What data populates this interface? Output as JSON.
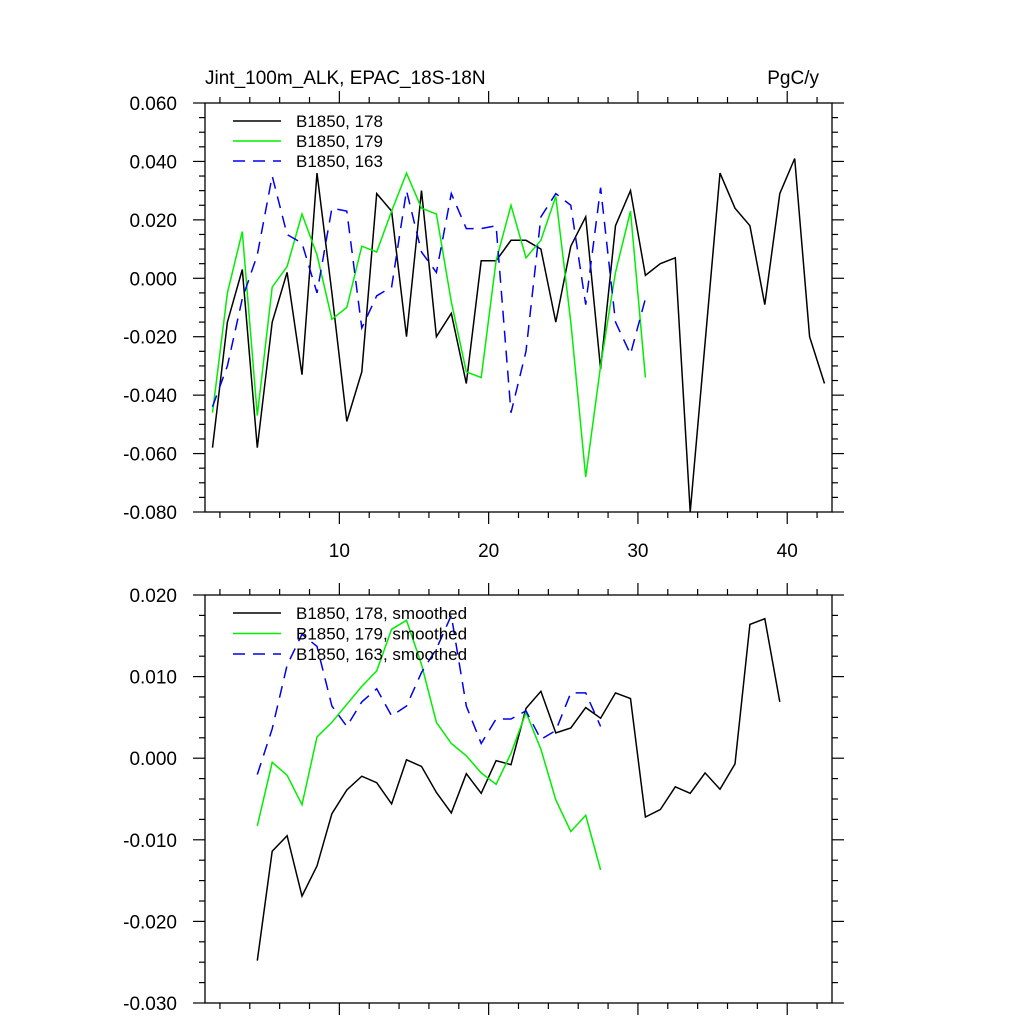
{
  "chart_data": [
    {
      "type": "line",
      "title_left": "Jint_100m_ALK, EPAC_18S-18N",
      "title_right": "PgC/y",
      "xlim": [
        1,
        43
      ],
      "ylim": [
        -0.08,
        0.06
      ],
      "xticks": [
        10,
        20,
        30,
        40
      ],
      "xtick_labels": [
        "10",
        "20",
        "30",
        "40"
      ],
      "yticks": [
        -0.08,
        -0.06,
        -0.04,
        -0.02,
        0.0,
        0.02,
        0.04,
        0.06
      ],
      "ytick_labels": [
        "-0.080",
        "-0.060",
        "-0.040",
        "-0.020",
        "0.000",
        "0.020",
        "0.040",
        "0.060"
      ],
      "series": [
        {
          "name": "B1850, 178",
          "color": "#000000",
          "dash": "",
          "x": [
            1.5,
            2.5,
            3.5,
            4.5,
            5.5,
            6.5,
            7.5,
            8.5,
            9.5,
            10.5,
            11.5,
            12.5,
            13.5,
            14.5,
            15.5,
            16.5,
            17.5,
            18.5,
            19.5,
            20.5,
            21.5,
            22.5,
            23.5,
            24.5,
            25.5,
            26.5,
            27.5,
            28.5,
            29.5,
            30.5,
            31.5,
            32.5,
            33.5,
            34.5,
            35.5,
            36.5,
            37.5,
            38.5,
            39.5,
            40.5,
            41.5,
            42.5
          ],
          "values": [
            -0.058,
            -0.015,
            0.003,
            -0.058,
            -0.015,
            0.002,
            -0.033,
            0.036,
            -0.005,
            -0.049,
            -0.032,
            0.029,
            0.023,
            -0.02,
            0.03,
            -0.02,
            -0.012,
            -0.036,
            0.006,
            0.006,
            0.013,
            0.013,
            0.01,
            -0.015,
            0.011,
            0.021,
            -0.031,
            0.018,
            0.03,
            0.001,
            0.005,
            0.007,
            -0.08,
            -0.022,
            0.036,
            0.024,
            0.018,
            -0.009,
            0.029,
            0.041,
            -0.02,
            -0.036
          ]
        },
        {
          "name": "B1850, 179",
          "color": "#00ee00",
          "dash": "",
          "x": [
            1.5,
            2.5,
            3.5,
            4.5,
            5.5,
            6.5,
            7.5,
            8.5,
            9.5,
            10.5,
            11.5,
            12.5,
            13.5,
            14.5,
            15.5,
            16.5,
            17.5,
            18.5,
            19.5,
            20.5,
            21.5,
            22.5,
            23.5,
            24.5,
            25.5,
            26.5,
            27.5,
            28.5,
            29.5,
            30.5
          ],
          "values": [
            -0.046,
            -0.005,
            0.016,
            -0.047,
            -0.003,
            0.004,
            0.022,
            0.008,
            -0.014,
            -0.01,
            0.011,
            0.009,
            0.023,
            0.036,
            0.024,
            0.022,
            -0.008,
            -0.032,
            -0.034,
            0.006,
            0.025,
            0.007,
            0.013,
            0.028,
            -0.015,
            -0.068,
            -0.03,
            0.002,
            0.023,
            -0.034
          ]
        },
        {
          "name": "B1850, 163",
          "color": "#0000ee",
          "dash": "12,8",
          "x": [
            1.5,
            2.5,
            3.5,
            4.5,
            5.5,
            6.5,
            7.5,
            8.5,
            9.5,
            10.5,
            11.5,
            12.5,
            13.5,
            14.5,
            15.5,
            16.5,
            17.5,
            18.5,
            19.5,
            20.5,
            21.5,
            22.5,
            23.5,
            24.5,
            25.5,
            26.5,
            27.5,
            28.5,
            29.5,
            30.5
          ],
          "values": [
            -0.044,
            -0.03,
            -0.007,
            0.008,
            0.035,
            0.015,
            0.012,
            -0.005,
            0.024,
            0.023,
            -0.017,
            -0.006,
            -0.003,
            0.03,
            0.009,
            0.002,
            0.029,
            0.017,
            0.017,
            0.018,
            -0.046,
            -0.025,
            0.021,
            0.029,
            0.025,
            -0.009,
            0.031,
            -0.015,
            -0.026,
            -0.007
          ]
        }
      ]
    },
    {
      "type": "line",
      "xlim": [
        1,
        43
      ],
      "ylim": [
        -0.03,
        0.02
      ],
      "xticks": [
        10,
        20,
        30,
        40
      ],
      "yticks": [
        -0.03,
        -0.02,
        -0.01,
        0.0,
        0.01,
        0.02
      ],
      "ytick_labels": [
        "-0.030",
        "-0.020",
        "-0.010",
        "0.000",
        "0.010",
        "0.020"
      ],
      "series": [
        {
          "name": "B1850, 178, smoothed",
          "color": "#000000",
          "dash": "",
          "x": [
            4.5,
            5.5,
            6.5,
            7.5,
            8.5,
            9.5,
            10.5,
            11.5,
            12.5,
            13.5,
            14.5,
            15.5,
            16.5,
            17.5,
            18.5,
            19.5,
            20.5,
            21.5,
            22.5,
            23.5,
            24.5,
            25.5,
            26.5,
            27.5,
            28.5,
            29.5,
            30.5,
            31.5,
            32.5,
            33.5,
            34.5,
            35.5,
            36.5,
            37.5,
            38.5,
            39.5
          ],
          "values": [
            -0.0248,
            -0.0114,
            -0.0095,
            -0.0169,
            -0.0132,
            -0.0068,
            -0.0039,
            -0.0022,
            -0.003,
            -0.0056,
            -0.0002,
            -0.001,
            -0.0042,
            -0.0067,
            -0.0019,
            -0.0043,
            -0.0003,
            -0.0008,
            0.0061,
            0.0082,
            0.0031,
            0.0037,
            0.0062,
            0.0049,
            0.008,
            0.0073,
            -0.0072,
            -0.0063,
            -0.0035,
            -0.0043,
            -0.0018,
            -0.0038,
            -0.0007,
            0.0164,
            0.0171,
            0.0069
          ]
        },
        {
          "name": "B1850, 179, smoothed",
          "color": "#00ee00",
          "dash": "",
          "x": [
            4.5,
            5.5,
            6.5,
            7.5,
            8.5,
            9.5,
            10.5,
            11.5,
            12.5,
            13.5,
            14.5,
            15.5,
            16.5,
            17.5,
            18.5,
            19.5,
            20.5,
            21.5,
            22.5,
            23.5,
            24.5,
            25.5,
            26.5,
            27.5
          ],
          "values": [
            -0.0083,
            -0.0005,
            -0.0021,
            -0.0057,
            0.0026,
            0.0044,
            0.0066,
            0.0088,
            0.0107,
            0.0158,
            0.0169,
            0.0115,
            0.0044,
            0.0018,
            0.0003,
            -0.0018,
            -0.0032,
            0.0006,
            0.0056,
            0.0011,
            -0.0051,
            -0.009,
            -0.007,
            -0.0137
          ]
        },
        {
          "name": "B1850, 163, smoothed",
          "color": "#0000ee",
          "dash": "12,8",
          "x": [
            4.5,
            5.5,
            6.5,
            7.5,
            8.5,
            9.5,
            10.5,
            11.5,
            12.5,
            13.5,
            14.5,
            15.5,
            16.5,
            17.5,
            18.5,
            19.5,
            20.5,
            21.5,
            22.5,
            23.5,
            24.5,
            25.5,
            26.5,
            27.5
          ],
          "values": [
            -0.002,
            0.0036,
            0.0114,
            0.0152,
            0.0137,
            0.0064,
            0.0039,
            0.0069,
            0.0085,
            0.0052,
            0.0064,
            0.0105,
            0.0134,
            0.0175,
            0.0064,
            0.0018,
            0.0048,
            0.0048,
            0.0058,
            0.0023,
            0.0034,
            0.008,
            0.008,
            0.0039
          ]
        }
      ]
    }
  ]
}
